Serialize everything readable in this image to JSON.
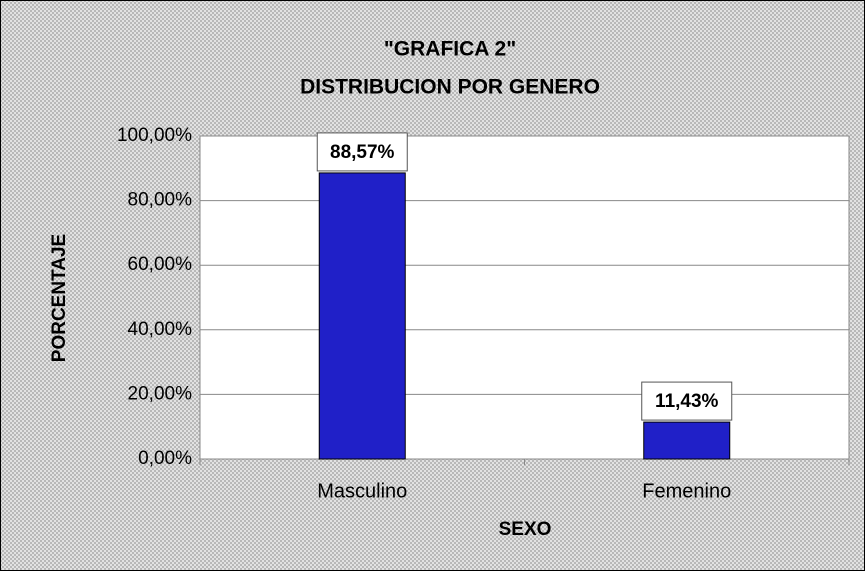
{
  "chart_data": {
    "type": "bar",
    "title": "\"GRAFICA 2\"",
    "subtitle": "DISTRIBUCION POR GENERO",
    "x_label": "SEXO",
    "y_label": "PORCENTAJE",
    "categories": [
      "Masculino",
      "Femenino"
    ],
    "values": [
      88.57,
      11.43
    ],
    "value_labels": [
      "88,57%",
      "11,43%"
    ],
    "color": "#2020c8",
    "ylim": [
      0,
      100
    ],
    "yticks": [
      {
        "value": 0,
        "label": "0,00%"
      },
      {
        "value": 20,
        "label": "20,00%"
      },
      {
        "value": 40,
        "label": "40,00%"
      },
      {
        "value": 60,
        "label": "60,00%"
      },
      {
        "value": 80,
        "label": "80,00%"
      },
      {
        "value": 100,
        "label": "100,00%"
      }
    ],
    "grid": true
  }
}
